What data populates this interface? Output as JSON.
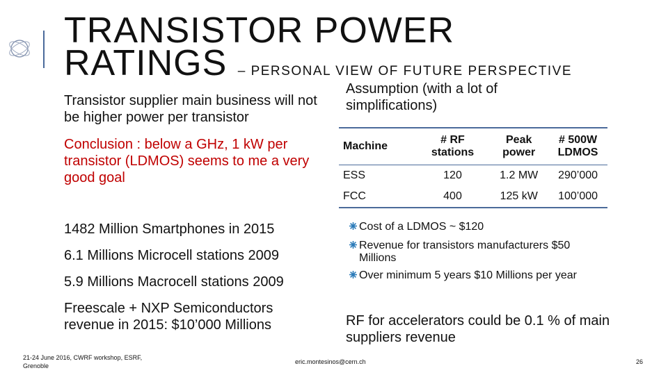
{
  "header": {
    "title_lines": [
      "TRANSISTOR POWER",
      "RATINGS"
    ],
    "subtitle": "– PERSONAL VIEW OF FUTURE PERSPECTIVE"
  },
  "left": {
    "intro": "Transistor supplier main business will not be higher power per transistor",
    "conclusion": "Conclusion : below a GHz, 1 kW per transistor (LDMOS) seems to me a very good goal",
    "facts": [
      "1482 Million Smartphones in 2015",
      "6.1 Millions Microcell stations 2009",
      "5.9 Millions Macrocell stations 2009",
      "Freescale + NXP Semiconductors revenue in 2015: $10’000 Millions"
    ]
  },
  "right": {
    "assumption": "Assumption (with a lot of simplifications)",
    "table": {
      "header": [
        "Machine",
        "# RF stations",
        "Peak power",
        "# 500W LDMOS"
      ],
      "rows": [
        [
          "ESS",
          "120",
          "1.2 MW",
          "290’000"
        ],
        [
          "FCC",
          "400",
          "125 kW",
          "100’000"
        ]
      ]
    },
    "bullets": [
      "Cost of a LDMOS ~ $120",
      "Revenue for transistors manufacturers $50 Millions",
      "Over minimum 5 years $10 Millions per year"
    ],
    "conclusion": "RF for accelerators could be 0.1 % of main suppliers revenue"
  },
  "footer": {
    "event": "21-24 June 2016, CWRF workshop, ESRF, Grenoble",
    "email": "eric.montesinos@cern.ch",
    "page": "26"
  }
}
